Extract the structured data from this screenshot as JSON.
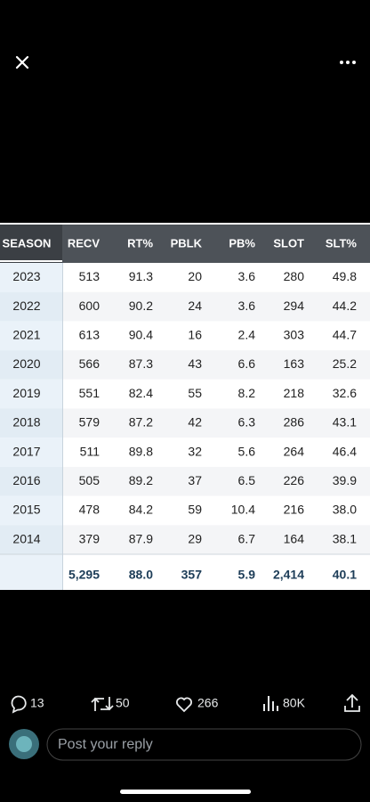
{
  "table": {
    "columns": [
      "SEASON",
      "RECV",
      "RT%",
      "PBLK",
      "PB%",
      "SLOT",
      "SLT%"
    ],
    "rows": [
      [
        "2023",
        "513",
        "91.3",
        "20",
        "3.6",
        "280",
        "49.8"
      ],
      [
        "2022",
        "600",
        "90.2",
        "24",
        "3.6",
        "294",
        "44.2"
      ],
      [
        "2021",
        "613",
        "90.4",
        "16",
        "2.4",
        "303",
        "44.7"
      ],
      [
        "2020",
        "566",
        "87.3",
        "43",
        "6.6",
        "163",
        "25.2"
      ],
      [
        "2019",
        "551",
        "82.4",
        "55",
        "8.2",
        "218",
        "32.6"
      ],
      [
        "2018",
        "579",
        "87.2",
        "42",
        "6.3",
        "286",
        "43.1"
      ],
      [
        "2017",
        "511",
        "89.8",
        "32",
        "5.6",
        "264",
        "46.4"
      ],
      [
        "2016",
        "505",
        "89.2",
        "37",
        "6.5",
        "226",
        "39.9"
      ],
      [
        "2015",
        "478",
        "84.2",
        "59",
        "10.4",
        "216",
        "38.0"
      ],
      [
        "2014",
        "379",
        "87.9",
        "29",
        "6.7",
        "164",
        "38.1"
      ]
    ],
    "totals": [
      "5,295",
      "88.0",
      "357",
      "5.9",
      "2,414",
      "40.1"
    ]
  },
  "stats": {
    "replies": "13",
    "reposts": "50",
    "likes": "266",
    "views": "80K"
  },
  "reply_placeholder": "Post your reply"
}
